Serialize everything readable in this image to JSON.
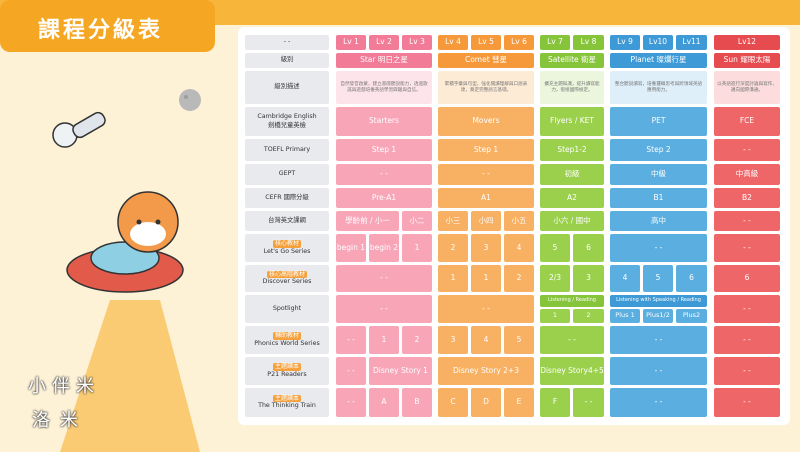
{
  "header": {
    "title": "課程分級表",
    "brand": [
      "小伴米",
      "洛米"
    ]
  },
  "table": {
    "corner": "- -",
    "levels": [
      "Lv 1",
      "Lv 2",
      "Lv 3",
      "Lv 4",
      "Lv 5",
      "Lv 6",
      "Lv 7",
      "Lv 8",
      "Lv 9",
      "Lv10",
      "Lv11",
      "Lv12"
    ],
    "rows": [
      {
        "label": "級別",
        "cells": [
          {
            "text": "Star 明日之星",
            "span": 3
          },
          {
            "text": "Comet 彗星",
            "span": 3
          },
          {
            "text": "Satellite 衛星",
            "span": 2
          },
          {
            "text": "Planet 璨爛行星",
            "span": 3
          },
          {
            "text": "Sun 耀眼太陽"
          }
        ]
      },
      {
        "label": "級別描述",
        "cells": [
          {
            "text": "自然發音啟蒙，建立基礎聽說能力，透過歌謠與遊戲培養英語學習興趣與自信。",
            "span": 3
          },
          {
            "text": "累積字彙與句型，強化閱讀理解與口語表達，奠定完整語言基礎。",
            "span": 3
          },
          {
            "text": "擴充主題知識，提升讀寫能力，銜接國際檢定。",
            "span": 2
          },
          {
            "text": "整合聽說讀寫，培養邏輯思考與跨領域英語應用能力。",
            "span": 3
          },
          {
            "text": "以英語進行深度討論與寫作，邁向國際溝通。"
          }
        ]
      },
      {
        "label": "Cambridge English",
        "sublabel": "劍橋兒童英檢",
        "cells": [
          {
            "text": "Starters",
            "span": 3
          },
          {
            "text": "Movers",
            "span": 3
          },
          {
            "text": "Flyers / KET",
            "span": 2
          },
          {
            "text": "PET",
            "span": 3
          },
          {
            "text": "FCE"
          }
        ]
      },
      {
        "label": "TOEFL Primary",
        "cells": [
          {
            "text": "Step 1",
            "span": 3
          },
          {
            "text": "Step 1",
            "span": 3
          },
          {
            "text": "Step1-2",
            "span": 2
          },
          {
            "text": "Step 2",
            "span": 3
          },
          {
            "text": "- -"
          }
        ]
      },
      {
        "label": "GEPT",
        "cells": [
          {
            "text": "- -",
            "span": 3
          },
          {
            "text": "- -",
            "span": 3
          },
          {
            "text": "初級",
            "span": 2
          },
          {
            "text": "中級",
            "span": 3
          },
          {
            "text": "中高級"
          }
        ]
      },
      {
        "label": "CEFR 國際分級",
        "cells": [
          {
            "text": "Pre-A1",
            "span": 3
          },
          {
            "text": "A1",
            "span": 3
          },
          {
            "text": "A2",
            "span": 2
          },
          {
            "text": "B1",
            "span": 3
          },
          {
            "text": "B2"
          }
        ]
      },
      {
        "label": "台灣英文課綱",
        "cells": [
          {
            "text": "學齡前 / 小一",
            "span": 2
          },
          {
            "text": "小二"
          },
          {
            "text": "小三"
          },
          {
            "text": "小四"
          },
          {
            "text": "小五"
          },
          {
            "text": "小六 / 國中",
            "span": 2
          },
          {
            "text": "高中",
            "span": 3
          },
          {
            "text": "- -"
          }
        ]
      },
      {
        "tag": "核心教材",
        "label": "Let's Go Series",
        "cells": [
          {
            "text": "begin 1"
          },
          {
            "text": "begin 2"
          },
          {
            "text": "1"
          },
          {
            "text": "2"
          },
          {
            "text": "3"
          },
          {
            "text": "4"
          },
          {
            "text": "5"
          },
          {
            "text": "6"
          },
          {
            "text": "- -",
            "span": 3
          },
          {
            "text": "- -"
          }
        ]
      },
      {
        "tag": "核心高階教材",
        "label": "Discover Series",
        "cells": [
          {
            "text": "- -",
            "span": 3
          },
          {
            "text": "1"
          },
          {
            "text": "1"
          },
          {
            "text": "2"
          },
          {
            "text": "2/3"
          },
          {
            "text": "3"
          },
          {
            "text": "4"
          },
          {
            "text": "5"
          },
          {
            "text": "6"
          },
          {
            "text": "6"
          }
        ]
      },
      {
        "label": "Spotlight",
        "cells": [
          {
            "text": "- -",
            "span": 3
          },
          {
            "text": "- -",
            "span": 3
          },
          {
            "text": "Listening / Reading",
            "span": 2,
            "parts": [
              "1",
              "2"
            ]
          },
          {
            "text": "Listening with Speaking / Reading",
            "span": 3,
            "parts": [
              "Plus 1",
              "Plus1/2",
              "Plus2"
            ]
          },
          {
            "text": "- -"
          }
        ]
      },
      {
        "tag": "輔助教材",
        "label": "Phonics World Series",
        "cells": [
          {
            "text": "- -"
          },
          {
            "text": "1"
          },
          {
            "text": "2"
          },
          {
            "text": "3"
          },
          {
            "text": "4"
          },
          {
            "text": "5"
          },
          {
            "text": "- -",
            "span": 2
          },
          {
            "text": "- -",
            "span": 3
          },
          {
            "text": "- -"
          }
        ]
      },
      {
        "tag": "主題讀本",
        "label": "P21 Readers",
        "cells": [
          {
            "text": "- -"
          },
          {
            "text": "Disney Story 1",
            "span": 2
          },
          {
            "text": "Disney Story 2+3",
            "span": 3
          },
          {
            "text": "Disney Story4+5",
            "span": 2
          },
          {
            "text": "- -",
            "span": 3
          },
          {
            "text": "- -"
          }
        ]
      },
      {
        "tag": "主題讀本",
        "label": "The Thinking Train",
        "cells": [
          {
            "text": "- -"
          },
          {
            "text": "A"
          },
          {
            "text": "B"
          },
          {
            "text": "C"
          },
          {
            "text": "D"
          },
          {
            "text": "E"
          },
          {
            "text": "F"
          },
          {
            "text": "- -"
          },
          {
            "text": "- -",
            "span": 3
          },
          {
            "text": "- -"
          }
        ]
      }
    ]
  }
}
